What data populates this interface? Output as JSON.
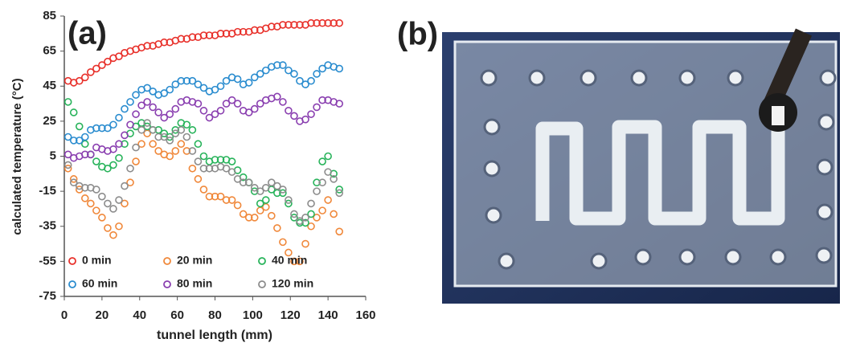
{
  "chart_data": {
    "type": "scatter",
    "panel_label": "(a)",
    "x_label": "tunnel length (mm)",
    "y_label": "calculated temperature (°C)",
    "xlim": [
      0,
      160
    ],
    "xticks": [
      0,
      20,
      40,
      60,
      80,
      100,
      120,
      140,
      160
    ],
    "ylim": [
      -75,
      85
    ],
    "yticks": [
      -75,
      -55,
      -35,
      -15,
      5,
      25,
      45,
      65,
      85
    ],
    "grid": false,
    "legend": "lower left",
    "x": [
      2,
      5,
      8,
      11,
      14,
      17,
      20,
      23,
      26,
      29,
      32,
      35,
      38,
      41,
      44,
      47,
      50,
      53,
      56,
      59,
      62,
      65,
      68,
      71,
      74,
      77,
      80,
      83,
      86,
      89,
      92,
      95,
      98,
      101,
      104,
      107,
      110,
      113,
      116,
      119,
      122,
      125,
      128,
      131,
      134,
      137,
      140,
      143,
      146
    ],
    "series": [
      {
        "name": "0 min",
        "color": "#e8302a",
        "values": [
          48,
          47,
          48,
          50,
          53,
          55,
          57,
          59,
          61,
          62,
          64,
          65,
          66,
          67,
          68,
          68,
          69,
          70,
          70,
          71,
          72,
          72,
          73,
          73,
          74,
          74,
          74,
          75,
          75,
          75,
          76,
          76,
          76,
          77,
          77,
          78,
          79,
          79,
          80,
          80,
          80,
          80,
          80,
          81,
          81,
          81,
          81,
          81,
          81
        ]
      },
      {
        "name": "20 min",
        "color": "#f0883a",
        "values": [
          -2,
          -8,
          -14,
          -19,
          -22,
          -26,
          -30,
          -36,
          -40,
          -35,
          -22,
          -10,
          2,
          12,
          18,
          12,
          8,
          6,
          5,
          8,
          12,
          8,
          -2,
          -8,
          -14,
          -18,
          -18,
          -18,
          -20,
          -20,
          -23,
          -28,
          -30,
          -30,
          -26,
          -24,
          -29,
          -36,
          -44,
          -50,
          -55,
          -55,
          -45,
          -35,
          -30,
          -26,
          -20,
          -28,
          -38
        ]
      },
      {
        "name": "40 min",
        "color": "#27b35a",
        "values": [
          36,
          30,
          22,
          12,
          6,
          2,
          -1,
          -2,
          0,
          4,
          12,
          18,
          22,
          24,
          22,
          20,
          20,
          18,
          16,
          20,
          24,
          23,
          20,
          12,
          5,
          2,
          3,
          3,
          3,
          2,
          -3,
          -7,
          -10,
          -15,
          -22,
          -20,
          -14,
          -16,
          -16,
          -22,
          -30,
          -33,
          -33,
          -28,
          -10,
          2,
          5,
          -5,
          -14
        ]
      },
      {
        "name": "60 min",
        "color": "#2a8ccf",
        "values": [
          16,
          14,
          14,
          16,
          20,
          21,
          21,
          21,
          23,
          27,
          32,
          36,
          40,
          43,
          44,
          42,
          40,
          41,
          43,
          46,
          48,
          48,
          48,
          46,
          44,
          42,
          43,
          45,
          48,
          50,
          49,
          46,
          47,
          50,
          52,
          54,
          56,
          57,
          57,
          54,
          52,
          48,
          46,
          48,
          52,
          55,
          57,
          56,
          55
        ]
      },
      {
        "name": "80 min",
        "color": "#8a3fb0",
        "values": [
          6,
          4,
          5,
          6,
          6,
          10,
          9,
          8,
          9,
          12,
          17,
          23,
          29,
          34,
          36,
          33,
          30,
          27,
          29,
          32,
          36,
          37,
          36,
          35,
          31,
          27,
          29,
          31,
          35,
          37,
          35,
          31,
          30,
          32,
          35,
          37,
          38,
          39,
          36,
          31,
          28,
          25,
          26,
          29,
          33,
          37,
          37,
          36,
          35
        ]
      },
      {
        "name": "120 min",
        "color": "#8c8c8c",
        "values": [
          0,
          -10,
          -12,
          -13,
          -13,
          -14,
          -18,
          -22,
          -25,
          -20,
          -12,
          -2,
          10,
          20,
          24,
          20,
          16,
          16,
          14,
          18,
          20,
          16,
          8,
          2,
          -2,
          -2,
          -2,
          -1,
          -2,
          -4,
          -8,
          -10,
          -10,
          -13,
          -15,
          -13,
          -10,
          -12,
          -14,
          -20,
          -28,
          -32,
          -30,
          -22,
          -15,
          -10,
          -4,
          -8,
          -16
        ]
      }
    ]
  },
  "photo": {
    "panel_label": "(b)"
  }
}
